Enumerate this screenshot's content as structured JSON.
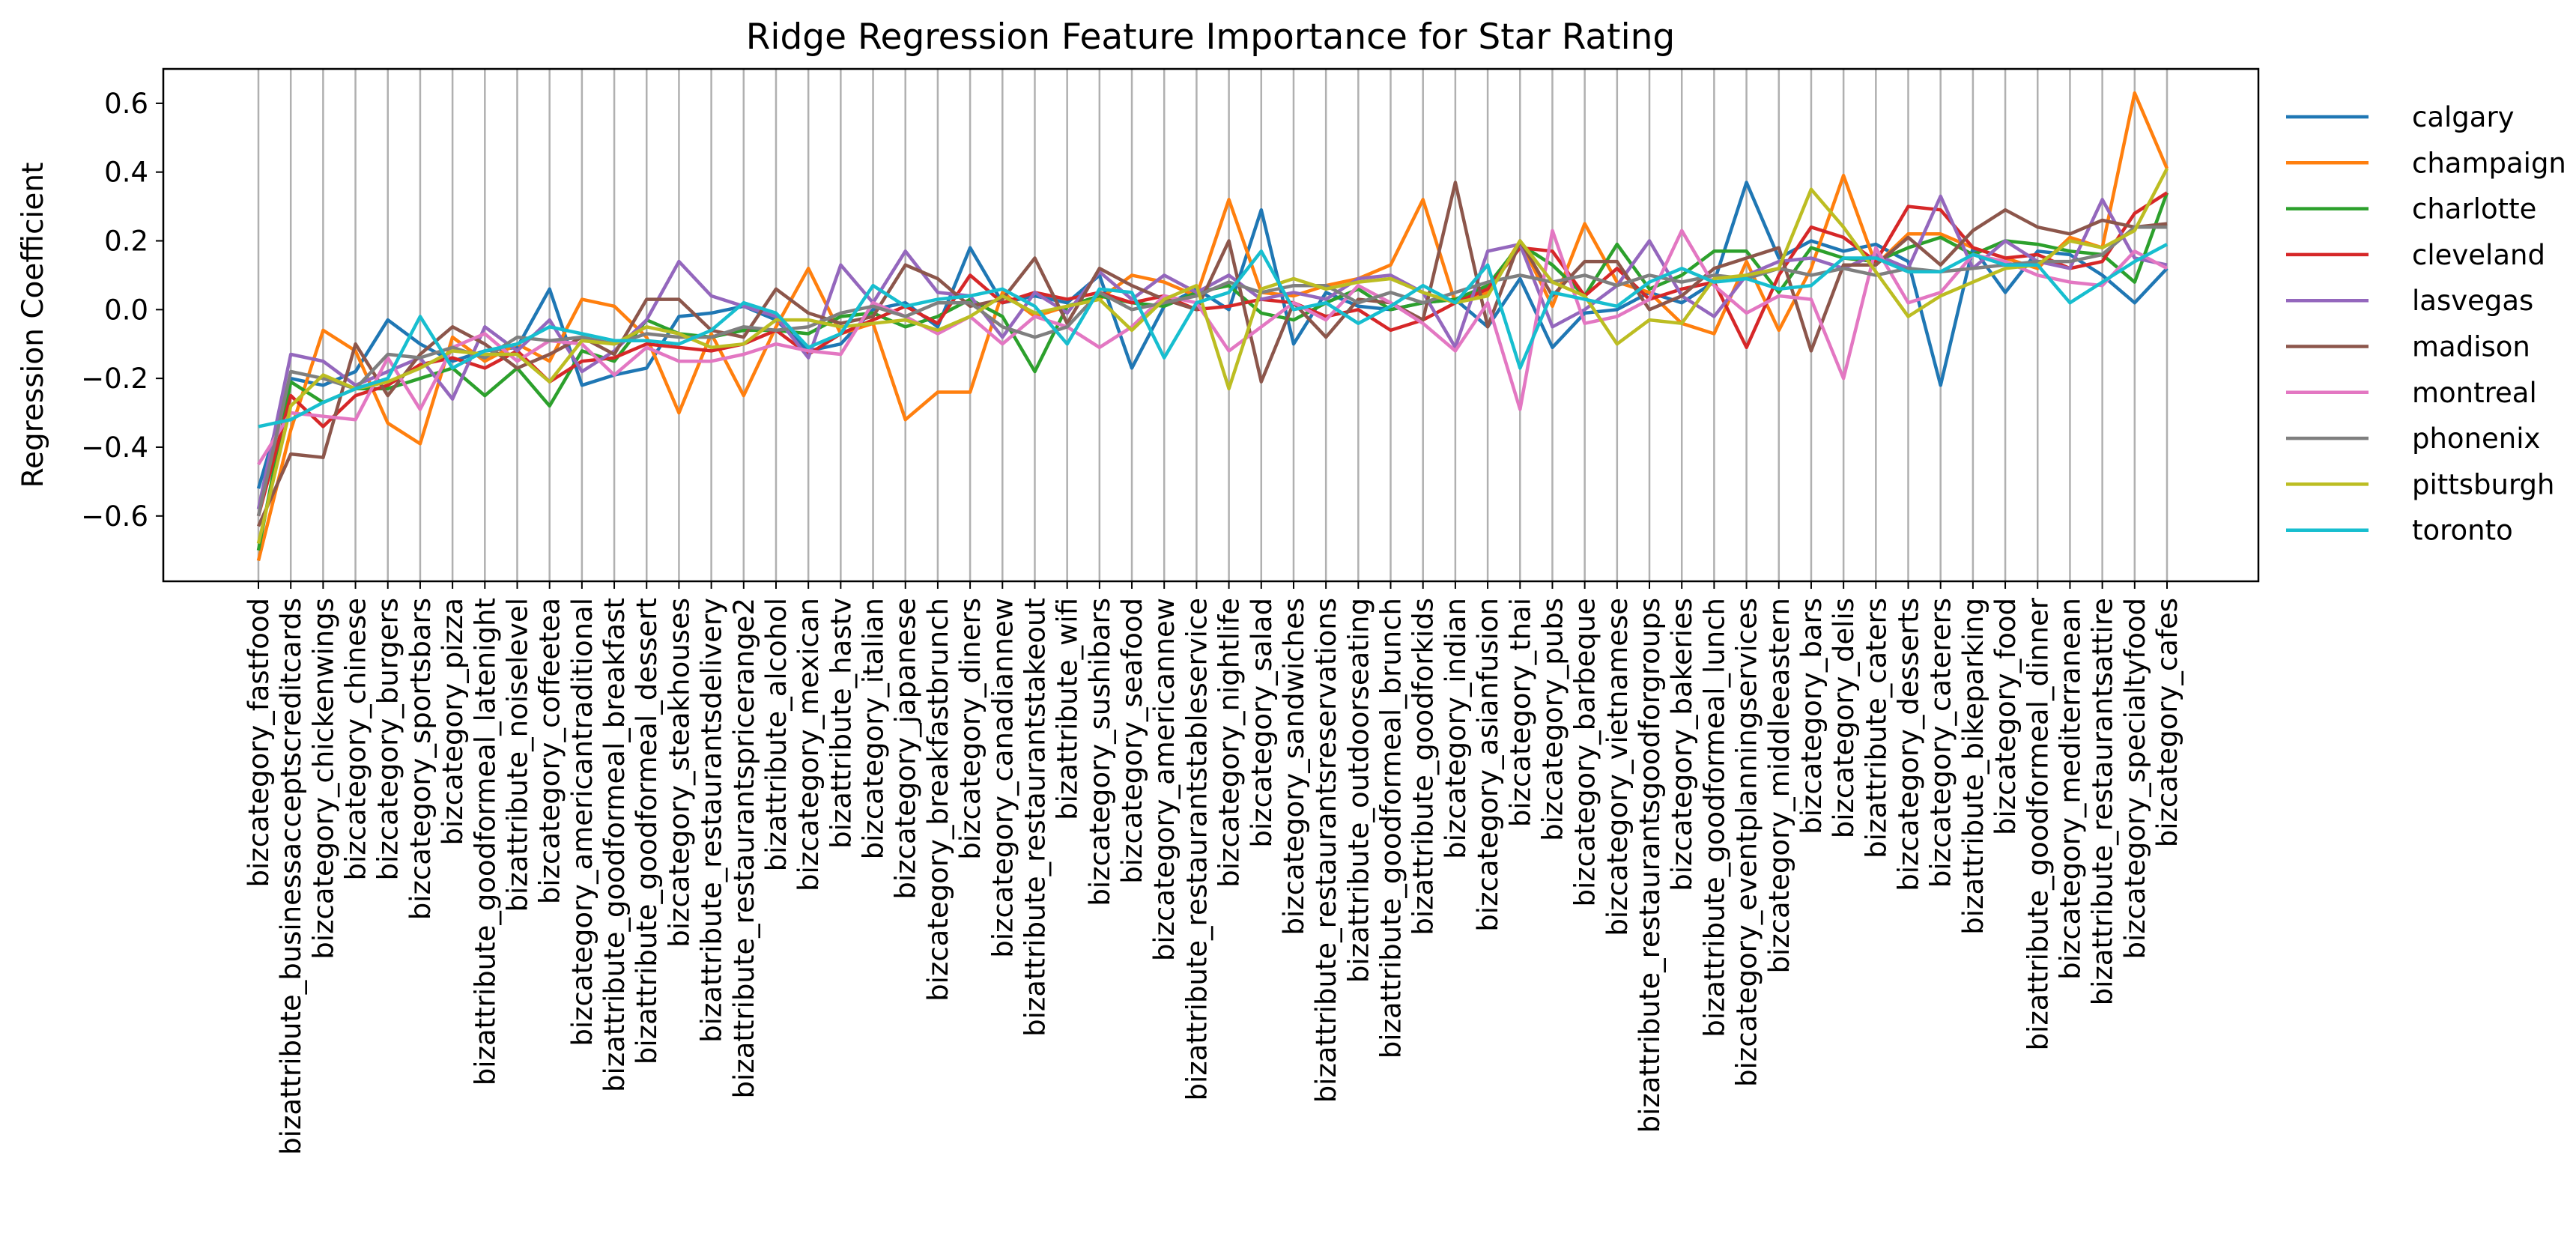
{
  "chart_data": {
    "type": "line",
    "title": "Ridge Regression Feature Importance for Star Rating",
    "xlabel": "",
    "ylabel": "Regression Coefficient",
    "ylim": [
      -0.79,
      0.7
    ],
    "yticks": [
      "−0.6",
      "−0.4",
      "−0.2",
      "0.0",
      "0.2",
      "0.4",
      "0.6"
    ],
    "ytick_values": [
      -0.6,
      -0.4,
      -0.2,
      0.0,
      0.2,
      0.4,
      0.6
    ],
    "grid": "vertical",
    "legend_position": "outside-right",
    "categories": [
      "bizcategory_fastfood",
      "bizattribute_businessacceptscreditcards",
      "bizcategory_chickenwings",
      "bizcategory_chinese",
      "bizcategory_burgers",
      "bizcategory_sportsbars",
      "bizcategory_pizza",
      "bizattribute_goodformeal_latenight",
      "bizattribute_noiselevel",
      "bizcategory_coffeetea",
      "bizcategory_americantraditional",
      "bizattribute_goodformeal_breakfast",
      "bizattribute_goodformeal_dessert",
      "bizcategory_steakhouses",
      "bizattribute_restaurantsdelivery",
      "bizattribute_restaurantspricerange2",
      "bizattribute_alcohol",
      "bizcategory_mexican",
      "bizattribute_hastv",
      "bizcategory_italian",
      "bizcategory_japanese",
      "bizcategory_breakfastbrunch",
      "bizcategory_diners",
      "bizcategory_canadiannew",
      "bizattribute_restaurantstakeout",
      "bizattribute_wifi",
      "bizcategory_sushibars",
      "bizcategory_seafood",
      "bizcategory_americannew",
      "bizattribute_restaurantstableservice",
      "bizcategory_nightlife",
      "bizcategory_salad",
      "bizcategory_sandwiches",
      "bizattribute_restaurantsreservations",
      "bizattribute_outdoorseating",
      "bizattribute_goodformeal_brunch",
      "bizattribute_goodforkids",
      "bizcategory_indian",
      "bizcategory_asianfusion",
      "bizcategory_thai",
      "bizcategory_pubs",
      "bizcategory_barbeque",
      "bizcategory_vietnamese",
      "bizattribute_restaurantsgoodforgroups",
      "bizcategory_bakeries",
      "bizattribute_goodformeal_lunch",
      "bizcategory_eventplanningservices",
      "bizcategory_middleeastern",
      "bizcategory_bars",
      "bizcategory_delis",
      "bizattribute_caters",
      "bizcategory_desserts",
      "bizcategory_caterers",
      "bizattribute_bikeparking",
      "bizcategory_food",
      "bizattribute_goodformeal_dinner",
      "bizcategory_mediterranean",
      "bizattribute_restaurantsattire",
      "bizcategory_specialtyfood",
      "bizcategory_cafes"
    ],
    "series": [
      {
        "name": "calgary",
        "color": "#1f77b4",
        "values": [
          -0.52,
          -0.2,
          -0.22,
          -0.18,
          -0.03,
          -0.1,
          -0.15,
          -0.12,
          -0.11,
          0.06,
          -0.22,
          -0.19,
          -0.17,
          -0.02,
          -0.01,
          0.01,
          -0.03,
          -0.12,
          -0.1,
          0.0,
          0.02,
          -0.05,
          0.18,
          0.02,
          0.04,
          0.02,
          0.1,
          -0.17,
          0.01,
          0.06,
          0.0,
          0.29,
          -0.1,
          0.05,
          0.01,
          0.0,
          0.02,
          0.03,
          -0.05,
          0.09,
          -0.11,
          -0.01,
          0.0,
          0.05,
          0.02,
          0.08,
          0.37,
          0.15,
          0.2,
          0.17,
          0.19,
          0.14,
          -0.22,
          0.18,
          0.05,
          0.17,
          0.16,
          0.1,
          0.02,
          0.12
        ]
      },
      {
        "name": "champaign",
        "color": "#ff7f0e",
        "values": [
          -0.73,
          -0.35,
          -0.06,
          -0.12,
          -0.33,
          -0.39,
          -0.08,
          -0.15,
          -0.1,
          -0.15,
          0.03,
          0.01,
          -0.08,
          -0.3,
          -0.07,
          -0.25,
          -0.05,
          0.12,
          -0.07,
          -0.04,
          -0.32,
          -0.24,
          -0.24,
          0.05,
          -0.02,
          0.01,
          0.03,
          0.1,
          0.08,
          0.04,
          0.32,
          0.05,
          0.04,
          0.07,
          0.09,
          0.13,
          0.32,
          0.02,
          0.05,
          0.2,
          0.01,
          0.25,
          0.08,
          0.05,
          -0.04,
          -0.07,
          0.14,
          -0.06,
          0.12,
          0.39,
          0.13,
          0.22,
          0.22,
          0.18,
          0.15,
          0.12,
          0.21,
          0.18,
          0.63,
          0.41
        ]
      },
      {
        "name": "charlotte",
        "color": "#2ca02c",
        "values": [
          -0.7,
          -0.21,
          -0.27,
          -0.23,
          -0.23,
          -0.2,
          -0.17,
          -0.25,
          -0.17,
          -0.28,
          -0.12,
          -0.15,
          -0.03,
          -0.07,
          -0.08,
          -0.06,
          -0.06,
          -0.07,
          -0.02,
          -0.01,
          -0.05,
          -0.02,
          0.03,
          -0.02,
          -0.18,
          0.01,
          0.04,
          0.02,
          0.01,
          0.05,
          0.07,
          -0.01,
          -0.03,
          0.02,
          0.06,
          0.0,
          0.02,
          0.03,
          0.07,
          0.19,
          0.13,
          0.04,
          0.19,
          0.06,
          0.1,
          0.17,
          0.17,
          0.05,
          0.18,
          0.15,
          0.14,
          0.18,
          0.21,
          0.16,
          0.2,
          0.19,
          0.17,
          0.16,
          0.08,
          0.34
        ]
      },
      {
        "name": "cleveland",
        "color": "#d62728",
        "values": [
          -0.6,
          -0.25,
          -0.34,
          -0.25,
          -0.22,
          -0.16,
          -0.14,
          -0.17,
          -0.12,
          -0.21,
          -0.15,
          -0.14,
          -0.1,
          -0.11,
          -0.12,
          -0.1,
          -0.06,
          -0.13,
          -0.07,
          -0.03,
          0.01,
          -0.04,
          0.1,
          0.02,
          0.05,
          0.03,
          0.05,
          0.02,
          0.04,
          0.0,
          0.01,
          0.03,
          0.02,
          -0.02,
          0.0,
          -0.06,
          -0.03,
          0.02,
          0.06,
          0.18,
          0.17,
          0.04,
          0.12,
          0.03,
          0.06,
          0.08,
          -0.11,
          0.1,
          0.24,
          0.21,
          0.14,
          0.3,
          0.29,
          0.18,
          0.15,
          0.16,
          0.12,
          0.14,
          0.28,
          0.34
        ]
      },
      {
        "name": "lasvegas",
        "color": "#9467bd",
        "values": [
          -0.58,
          -0.13,
          -0.15,
          -0.22,
          -0.18,
          -0.14,
          -0.26,
          -0.05,
          -0.12,
          -0.03,
          -0.18,
          -0.12,
          -0.03,
          0.14,
          0.04,
          0.01,
          -0.02,
          -0.14,
          0.13,
          0.02,
          0.17,
          0.05,
          0.04,
          -0.08,
          0.05,
          -0.01,
          0.11,
          0.03,
          0.1,
          0.05,
          0.1,
          0.03,
          0.05,
          0.03,
          0.09,
          0.1,
          0.05,
          -0.11,
          0.17,
          0.19,
          -0.05,
          0.0,
          0.07,
          0.2,
          0.04,
          -0.02,
          0.1,
          0.14,
          0.15,
          0.12,
          0.16,
          0.12,
          0.33,
          0.12,
          0.2,
          0.14,
          0.12,
          0.32,
          0.15,
          0.13
        ]
      },
      {
        "name": "madison",
        "color": "#8c564b",
        "values": [
          -0.63,
          -0.42,
          -0.43,
          -0.1,
          -0.25,
          -0.13,
          -0.05,
          -0.1,
          -0.17,
          -0.13,
          -0.08,
          -0.13,
          0.03,
          0.03,
          -0.06,
          -0.08,
          0.06,
          -0.01,
          -0.04,
          -0.02,
          0.13,
          0.09,
          0.01,
          0.03,
          0.15,
          -0.04,
          0.12,
          0.07,
          0.03,
          0.0,
          0.2,
          -0.21,
          0.02,
          -0.08,
          0.03,
          0.02,
          -0.03,
          0.37,
          -0.05,
          0.2,
          0.04,
          0.14,
          0.14,
          0.0,
          0.04,
          0.12,
          0.15,
          0.18,
          -0.12,
          0.13,
          0.13,
          0.21,
          0.13,
          0.23,
          0.29,
          0.24,
          0.22,
          0.26,
          0.24,
          0.25
        ]
      },
      {
        "name": "montreal",
        "color": "#e377c2",
        "values": [
          -0.45,
          -0.3,
          -0.31,
          -0.32,
          -0.14,
          -0.29,
          -0.11,
          -0.07,
          -0.15,
          -0.09,
          -0.1,
          -0.19,
          -0.11,
          -0.15,
          -0.15,
          -0.13,
          -0.1,
          -0.12,
          -0.13,
          0.02,
          -0.02,
          -0.07,
          -0.02,
          -0.1,
          -0.02,
          -0.05,
          -0.11,
          -0.05,
          0.04,
          0.02,
          -0.12,
          -0.05,
          0.02,
          -0.03,
          0.07,
          0.02,
          -0.04,
          -0.12,
          0.02,
          -0.29,
          0.23,
          -0.04,
          -0.02,
          0.03,
          0.23,
          0.07,
          -0.01,
          0.04,
          0.03,
          -0.2,
          0.18,
          0.02,
          0.05,
          0.16,
          0.14,
          0.1,
          0.08,
          0.07,
          0.17,
          0.12
        ]
      },
      {
        "name": "phonenix",
        "color": "#7f7f7f",
        "values": [
          -0.6,
          -0.18,
          -0.2,
          -0.23,
          -0.13,
          -0.14,
          -0.11,
          -0.14,
          -0.08,
          -0.09,
          -0.08,
          -0.1,
          -0.07,
          -0.08,
          -0.08,
          -0.05,
          -0.06,
          -0.05,
          -0.01,
          0.01,
          -0.02,
          0.02,
          0.02,
          -0.05,
          -0.08,
          -0.05,
          0.05,
          0.0,
          0.02,
          0.04,
          0.08,
          0.05,
          0.07,
          0.07,
          0.02,
          0.05,
          0.02,
          0.05,
          0.08,
          0.1,
          0.08,
          0.1,
          0.07,
          0.1,
          0.08,
          0.1,
          0.09,
          0.12,
          0.1,
          0.12,
          0.1,
          0.12,
          0.11,
          0.12,
          0.13,
          0.14,
          0.14,
          0.16,
          0.24,
          0.24
        ]
      },
      {
        "name": "pittsburgh",
        "color": "#bcbd22",
        "values": [
          -0.68,
          -0.28,
          -0.19,
          -0.23,
          -0.21,
          -0.17,
          -0.12,
          -0.13,
          -0.13,
          -0.21,
          -0.09,
          -0.1,
          -0.05,
          -0.07,
          -0.11,
          -0.1,
          -0.03,
          -0.03,
          -0.05,
          -0.04,
          -0.03,
          -0.06,
          -0.02,
          0.04,
          -0.01,
          0.01,
          0.03,
          -0.06,
          0.03,
          0.07,
          -0.23,
          0.06,
          0.09,
          0.06,
          0.08,
          0.09,
          0.05,
          0.02,
          0.04,
          0.2,
          0.08,
          0.04,
          -0.1,
          -0.03,
          -0.04,
          0.09,
          0.1,
          0.12,
          0.35,
          0.24,
          0.11,
          -0.02,
          0.04,
          0.08,
          0.12,
          0.13,
          0.2,
          0.18,
          0.23,
          0.41
        ]
      },
      {
        "name": "toronto",
        "color": "#17becf",
        "values": [
          -0.34,
          -0.32,
          -0.27,
          -0.23,
          -0.2,
          -0.02,
          -0.17,
          -0.12,
          -0.1,
          -0.05,
          -0.07,
          -0.09,
          -0.09,
          -0.1,
          -0.06,
          0.02,
          -0.01,
          -0.11,
          -0.07,
          0.07,
          0.01,
          0.03,
          0.04,
          0.06,
          0.01,
          -0.1,
          0.06,
          0.05,
          -0.14,
          0.02,
          0.05,
          0.17,
          0.0,
          0.02,
          -0.04,
          0.01,
          0.07,
          0.02,
          0.13,
          -0.17,
          0.05,
          0.03,
          0.01,
          0.08,
          0.12,
          0.08,
          0.09,
          0.06,
          0.07,
          0.15,
          0.15,
          0.11,
          0.11,
          0.16,
          0.13,
          0.13,
          0.02,
          0.08,
          0.14,
          0.19
        ]
      }
    ]
  }
}
